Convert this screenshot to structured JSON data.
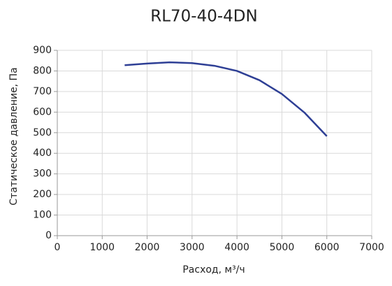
{
  "chart_data": {
    "type": "line",
    "title": "RL70-40-4DN",
    "x_label": "Расход, м³/ч",
    "y_label": "Статическое давление, Па",
    "x": [
      1500,
      2000,
      2500,
      3000,
      3500,
      4000,
      4500,
      5000,
      5500,
      6000
    ],
    "series": [
      {
        "color": "#2e3f95",
        "values": [
          828,
          836,
          842,
          838,
          825,
          800,
          755,
          688,
          598,
          483
        ]
      }
    ],
    "xlim": [
      0,
      7000
    ],
    "xticks": [
      0,
      1000,
      2000,
      3000,
      4000,
      5000,
      6000,
      7000
    ],
    "ylim": [
      0,
      900
    ],
    "yticks": [
      0,
      100,
      200,
      300,
      400,
      500,
      600,
      700,
      800,
      900
    ],
    "grid": true
  }
}
